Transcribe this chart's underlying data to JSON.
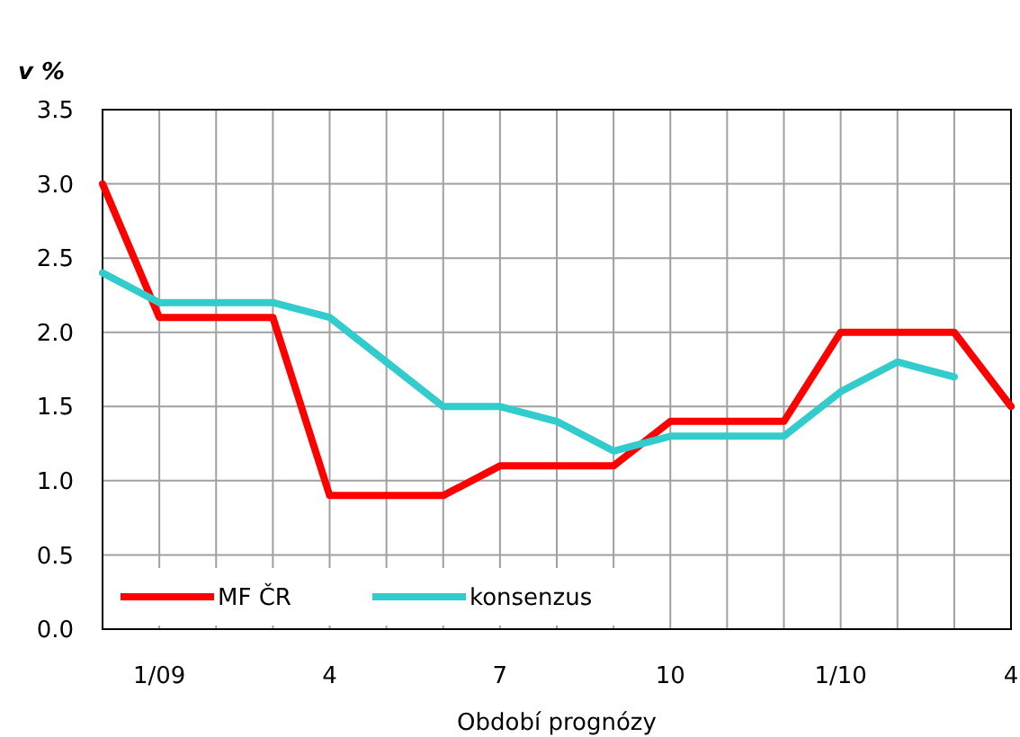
{
  "chart_data": {
    "type": "line",
    "ylabel": "v %",
    "xlabel": "Období prognózy",
    "categories": [
      null,
      "1/09",
      null,
      null,
      "4",
      null,
      null,
      "7",
      null,
      null,
      "10",
      null,
      null,
      "1/10",
      null,
      null,
      "4"
    ],
    "series": [
      {
        "name": "MF ČR",
        "color": "#ff0000",
        "values": [
          3.0,
          2.1,
          2.1,
          2.1,
          0.9,
          0.9,
          0.9,
          1.1,
          1.1,
          1.1,
          1.4,
          1.4,
          1.4,
          2.0,
          2.0,
          2.0,
          1.5
        ]
      },
      {
        "name": "konsenzus",
        "color": "#33cccc",
        "values": [
          2.4,
          2.2,
          2.2,
          2.2,
          2.1,
          1.8,
          1.5,
          1.5,
          1.4,
          1.2,
          1.3,
          1.3,
          1.3,
          1.6,
          1.8,
          1.7,
          null
        ]
      }
    ],
    "ylim": [
      0,
      3.5
    ],
    "yticks": [
      {
        "value": 0,
        "label": "0.0"
      },
      {
        "value": 0.5,
        "label": "0.5"
      },
      {
        "value": 1,
        "label": "1.0"
      },
      {
        "value": 1.5,
        "label": "1.5"
      },
      {
        "value": 2,
        "label": "2.0"
      },
      {
        "value": 2.5,
        "label": "2.5"
      },
      {
        "value": 3,
        "label": "3.0"
      },
      {
        "value": 3.5,
        "label": "3.5"
      }
    ],
    "grid": true,
    "legend": "bottom left",
    "marker": "none",
    "line_style": "solid"
  }
}
